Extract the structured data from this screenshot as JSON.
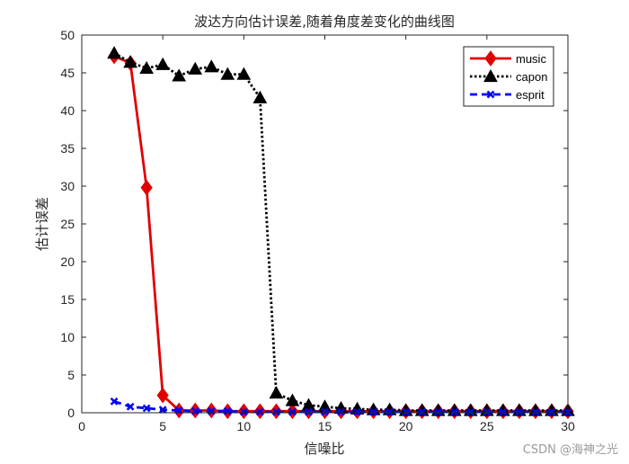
{
  "chart_data": {
    "type": "line",
    "title": "波达方向估计误差,随着角度差变化的曲线图",
    "xlabel": "信噪比",
    "ylabel": "估计误差",
    "xlim": [
      0,
      30
    ],
    "ylim": [
      0,
      50
    ],
    "xticks": [
      "0",
      "5",
      "10",
      "15",
      "20",
      "25",
      "30"
    ],
    "yticks": [
      "0",
      "5",
      "10",
      "15",
      "20",
      "25",
      "30",
      "35",
      "40",
      "45",
      "50"
    ],
    "grid": false,
    "legend_position": "top-right",
    "x": [
      2,
      3,
      4,
      5,
      6,
      7,
      8,
      9,
      10,
      11,
      12,
      13,
      14,
      15,
      16,
      17,
      18,
      19,
      20,
      21,
      22,
      23,
      24,
      25,
      26,
      27,
      28,
      29,
      30
    ],
    "series": [
      {
        "name": "music",
        "color": "#e00000",
        "line_style": "solid",
        "marker": "diamond",
        "values": [
          47.2,
          46.3,
          29.8,
          2.3,
          0.3,
          0.3,
          0.3,
          0.2,
          0.2,
          0.2,
          0.2,
          0.2,
          0.2,
          0.2,
          0.2,
          0.2,
          0.2,
          0.2,
          0.2,
          0.2,
          0.2,
          0.2,
          0.2,
          0.2,
          0.2,
          0.2,
          0.2,
          0.2,
          0.2
        ]
      },
      {
        "name": "capon",
        "color": "#000000",
        "line_style": "dotted",
        "marker": "triangle-up",
        "values": [
          47.6,
          46.4,
          45.6,
          46.1,
          44.6,
          45.5,
          45.8,
          44.8,
          44.8,
          41.7,
          2.6,
          1.6,
          1.0,
          0.8,
          0.6,
          0.5,
          0.4,
          0.4,
          0.3,
          0.3,
          0.3,
          0.3,
          0.3,
          0.3,
          0.3,
          0.3,
          0.3,
          0.3,
          0.3
        ]
      },
      {
        "name": "esprit",
        "color": "#0000ff",
        "line_style": "dashed",
        "marker": "x",
        "values": [
          1.5,
          0.8,
          0.6,
          0.4,
          0.3,
          0.2,
          0.2,
          0.2,
          0.1,
          0.1,
          0.1,
          0.1,
          0.1,
          0.1,
          0.1,
          0.1,
          0.1,
          0.1,
          0.1,
          0.1,
          0.1,
          0.1,
          0.1,
          0.1,
          0.1,
          0.1,
          0.1,
          0.1,
          0.1
        ]
      }
    ]
  },
  "watermark": "CSDN @海神之光"
}
